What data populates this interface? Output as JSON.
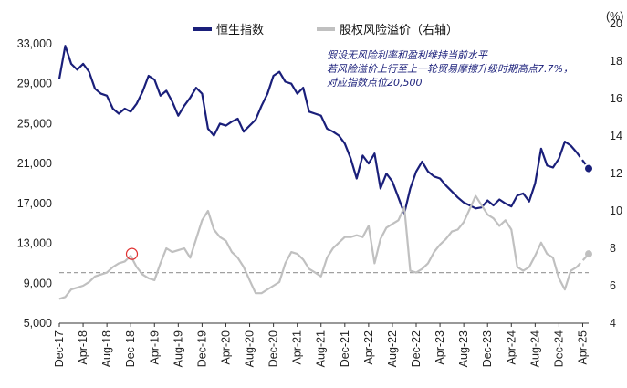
{
  "chart_data": {
    "type": "line",
    "legend": {
      "position": "top-center",
      "items": [
        {
          "label": "恒生指数",
          "color": "#1a1f7a",
          "style": "solid"
        },
        {
          "label": "股权风险溢价（右轴）",
          "color": "#c0c0c0",
          "style": "solid"
        }
      ]
    },
    "y_left": {
      "ticks": [
        "5,000",
        "9,000",
        "13,000",
        "17,000",
        "21,000",
        "25,000",
        "29,000",
        "33,000"
      ],
      "ylim": [
        5000,
        33000
      ]
    },
    "y_right": {
      "unit_label": "(%)",
      "ticks": [
        "4",
        "6",
        "8",
        "10",
        "12",
        "14",
        "16",
        "18",
        "20"
      ],
      "ylim": [
        4,
        20
      ]
    },
    "x_ticks": [
      "Dec-17",
      "Apr-18",
      "Aug-18",
      "Dec-18",
      "Apr-19",
      "Aug-19",
      "Dec-19",
      "Apr-20",
      "Aug-20",
      "Dec-20",
      "Apr-21",
      "Aug-21",
      "Dec-21",
      "Apr-22",
      "Aug-22",
      "Dec-22",
      "Apr-23",
      "Aug-23",
      "Dec-23",
      "Apr-24",
      "Aug-24",
      "Dec-24",
      "Apr-25"
    ],
    "x_range": [
      0,
      89
    ],
    "reference_line": {
      "value": 6.7,
      "axis": "right",
      "style": "dashed",
      "color": "#a0a0a0"
    },
    "annotation": {
      "lines": [
        "假设无风险利率和盈利维持当前水平",
        "若风险溢价上行至上一轮贸易摩擦升级时期高点7.7%，",
        "对应指数点位20,500"
      ],
      "color": "#1a1f7a"
    },
    "highlight_marker": {
      "month": 12.2,
      "value": 7.7,
      "axis": "right",
      "color": "#e03030",
      "shape": "circle-outline"
    },
    "series": [
      {
        "name": "恒生指数",
        "axis": "left",
        "color": "#1a1f7a",
        "x": [
          0,
          1,
          2,
          3,
          4,
          5,
          6,
          7,
          8,
          9,
          10,
          11,
          12,
          13,
          14,
          15,
          16,
          17,
          18,
          19,
          20,
          21,
          22,
          23,
          24,
          25,
          26,
          27,
          28,
          29,
          30,
          31,
          32,
          33,
          34,
          35,
          36,
          37,
          38,
          39,
          40,
          41,
          42,
          43,
          44,
          45,
          46,
          47,
          48,
          49,
          50,
          51,
          52,
          53,
          54,
          55,
          56,
          57,
          58,
          59,
          60,
          61,
          62,
          63,
          64,
          65,
          66,
          67,
          68,
          69,
          70,
          71,
          72,
          73,
          74,
          75,
          76,
          77,
          78,
          79,
          80,
          81,
          82,
          83,
          84,
          85,
          86,
          87
        ],
        "values": [
          29500,
          32800,
          31000,
          30400,
          31000,
          30200,
          28500,
          28000,
          27800,
          26500,
          26000,
          26500,
          26200,
          27000,
          28200,
          29800,
          29400,
          27800,
          28300,
          27200,
          25800,
          26800,
          27600,
          28600,
          28000,
          24500,
          23800,
          25000,
          24800,
          25200,
          25500,
          24200,
          24800,
          25400,
          26800,
          28000,
          29800,
          30200,
          29200,
          29000,
          28000,
          28600,
          26200,
          26000,
          25800,
          24500,
          24200,
          23800,
          23000,
          21500,
          19500,
          21800,
          21000,
          22000,
          18500,
          20000,
          19200,
          17600,
          16000,
          18500,
          20200,
          21200,
          20200,
          19700,
          19500,
          18800,
          18200,
          17600,
          17100,
          16800,
          16500,
          16600,
          17300,
          16800,
          17400,
          17000,
          16700,
          17800,
          18000,
          17200,
          19000,
          22500,
          20800,
          20600,
          21500,
          23200,
          22800,
          22100
        ],
        "projection": {
          "x": [
            87,
            89
          ],
          "values": [
            22100,
            20500
          ]
        }
      },
      {
        "name": "股权风险溢价（右轴）",
        "axis": "right",
        "color": "#c0c0c0",
        "x": [
          0,
          1,
          2,
          3,
          4,
          5,
          6,
          7,
          8,
          9,
          10,
          11,
          12,
          13,
          14,
          15,
          16,
          17,
          18,
          19,
          20,
          21,
          22,
          23,
          24,
          25,
          26,
          27,
          28,
          29,
          30,
          31,
          32,
          33,
          34,
          35,
          36,
          37,
          38,
          39,
          40,
          41,
          42,
          43,
          44,
          45,
          46,
          47,
          48,
          49,
          50,
          51,
          52,
          53,
          54,
          55,
          56,
          57,
          58,
          59,
          60,
          61,
          62,
          63,
          64,
          65,
          66,
          67,
          68,
          69,
          70,
          71,
          72,
          73,
          74,
          75,
          76,
          77,
          78,
          79,
          80,
          81,
          82,
          83,
          84,
          85,
          86,
          87
        ],
        "values": [
          5.3,
          5.4,
          5.8,
          5.9,
          6.0,
          6.2,
          6.5,
          6.6,
          6.7,
          7.0,
          7.2,
          7.3,
          7.6,
          7.0,
          6.6,
          6.4,
          6.3,
          7.2,
          8.0,
          7.8,
          7.9,
          8.0,
          7.5,
          8.5,
          9.5,
          10.0,
          9.0,
          8.6,
          8.4,
          7.8,
          7.5,
          7.0,
          6.3,
          5.6,
          5.6,
          5.8,
          6.0,
          6.2,
          7.2,
          7.8,
          7.7,
          7.4,
          6.9,
          6.7,
          6.5,
          7.5,
          8.0,
          8.3,
          8.6,
          8.6,
          8.7,
          8.6,
          9.2,
          7.2,
          8.5,
          9.1,
          9.3,
          9.5,
          10.2,
          6.8,
          6.7,
          6.9,
          7.2,
          7.8,
          8.2,
          8.5,
          8.9,
          9.0,
          9.4,
          10.1,
          10.8,
          10.3,
          9.8,
          9.6,
          9.2,
          9.5,
          9.0,
          7.0,
          6.8,
          7.0,
          7.6,
          8.3,
          7.7,
          7.5,
          6.4,
          5.8,
          6.8,
          7.0
        ],
        "projection": {
          "x": [
            87,
            89
          ],
          "values": [
            7.0,
            7.7
          ]
        }
      }
    ]
  }
}
